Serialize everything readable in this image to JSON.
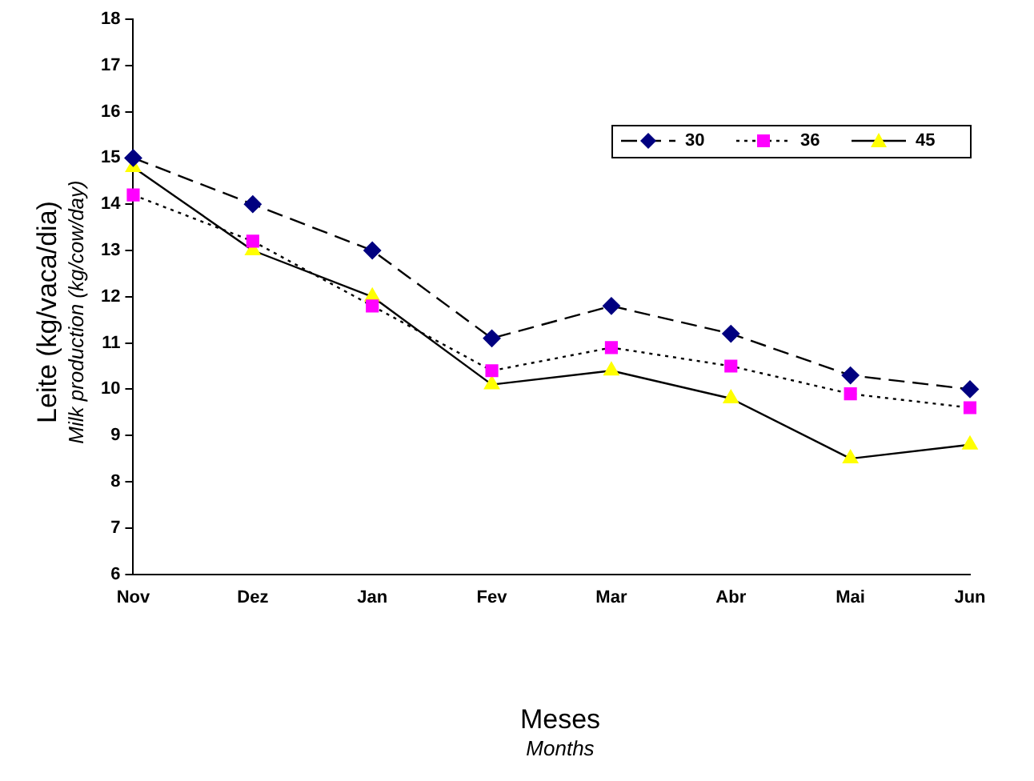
{
  "chart_data": {
    "type": "line",
    "xlabel": "Meses\nMonths",
    "ylabel": "Leite  (kg/vaca/dia)\nMilk production  (kg/cow/day)",
    "categories": [
      "Nov",
      "Dez",
      "Jan",
      "Fev",
      "Mar",
      "Abr",
      "Mai",
      "Jun"
    ],
    "ylim": [
      6,
      18
    ],
    "yticks": [
      6,
      7,
      8,
      9,
      10,
      11,
      12,
      13,
      14,
      15,
      16,
      17,
      18
    ],
    "grid": false,
    "legend": "top right",
    "series": [
      {
        "name": "30",
        "color": "#000080",
        "marker": "diamond",
        "line_style": "dashed",
        "values": [
          15.0,
          14.0,
          13.0,
          11.1,
          11.8,
          11.2,
          10.3,
          10.0
        ]
      },
      {
        "name": "36",
        "color": "#ff00ff",
        "marker": "square",
        "line_style": "dotted",
        "values": [
          14.2,
          13.2,
          11.8,
          10.4,
          10.9,
          10.5,
          9.9,
          9.6
        ]
      },
      {
        "name": "45",
        "color": "#ffff00",
        "marker": "triangle",
        "line_style": "solid",
        "values": [
          14.8,
          13.0,
          12.0,
          10.1,
          10.4,
          9.8,
          8.5,
          8.8
        ]
      }
    ]
  }
}
